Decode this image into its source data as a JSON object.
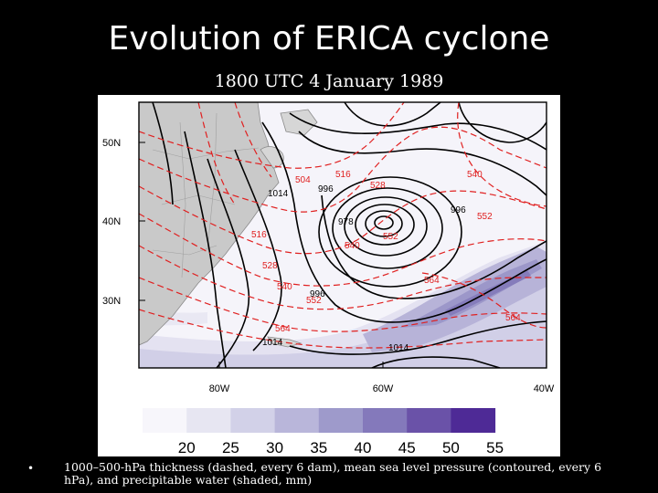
{
  "slide": {
    "title": "Evolution of ERICA cyclone",
    "subtitle": "1800 UTC 4 January 1989",
    "caption": "1000–500-hPa thickness (dashed, every 6 dam), mean sea level pressure (contoured, every 6 hPa), and precipitable water (shaded, mm)",
    "bullet": "•"
  },
  "map": {
    "lat_labels": [
      "50N",
      "40N",
      "30N"
    ],
    "lon_labels": [
      "80W",
      "60W",
      "40W"
    ],
    "thickness_labels": [
      "504",
      "516",
      "528",
      "540",
      "552",
      "516",
      "528",
      "540",
      "552",
      "564",
      "564",
      "564",
      "540",
      "552"
    ],
    "pressure_labels": [
      "1014",
      "996",
      "978",
      "996",
      "996",
      "1014",
      "1014"
    ],
    "colors": {
      "thickness": "#e02020",
      "pressure": "#000000",
      "land": "#9a9a9a"
    }
  },
  "colorbar": {
    "ticks": [
      "20",
      "25",
      "30",
      "35",
      "40",
      "45",
      "50",
      "55"
    ],
    "colors": [
      "#f7f6fb",
      "#e7e6f2",
      "#d2d1e8",
      "#b9b6da",
      "#9e9acb",
      "#8479bb",
      "#6a52a8",
      "#4e2a96"
    ]
  }
}
